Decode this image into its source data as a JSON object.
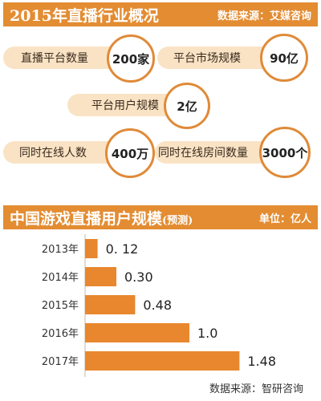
{
  "overview": {
    "title": "2015年直播行业概况",
    "source": "数据来源：艾媒咨询",
    "stats": [
      {
        "label": "直播平台数量",
        "value": "200家"
      },
      {
        "label": "平台市场规模",
        "value": "90亿"
      },
      {
        "label": "平台用户规模",
        "value": "2亿"
      },
      {
        "label": "同时在线人数",
        "value": "400万"
      },
      {
        "label": "同时在线房间数量",
        "value": "3000个"
      }
    ]
  },
  "colors": {
    "accent": "#e38c32",
    "bar": "#e8872d",
    "pill": "#f9e3c4",
    "circle_border": "#e08a38"
  },
  "chart_section": {
    "title": "中国游戏直播用户规模",
    "title_suffix": "(预测)",
    "unit": "单位：亿人",
    "source": "数据来源：智研咨询"
  },
  "chart_data": {
    "type": "bar",
    "orientation": "horizontal",
    "categories": [
      "2013年",
      "2014年",
      "2015年",
      "2016年",
      "2017年"
    ],
    "values": [
      0.12,
      0.3,
      0.48,
      1.0,
      1.48
    ],
    "value_labels": [
      "0. 12",
      "0.30",
      "0.48",
      "1.0",
      "1.48"
    ],
    "title": "中国游戏直播用户规模(预测)",
    "xlabel": "",
    "ylabel": "",
    "unit": "亿人",
    "grid": false
  }
}
